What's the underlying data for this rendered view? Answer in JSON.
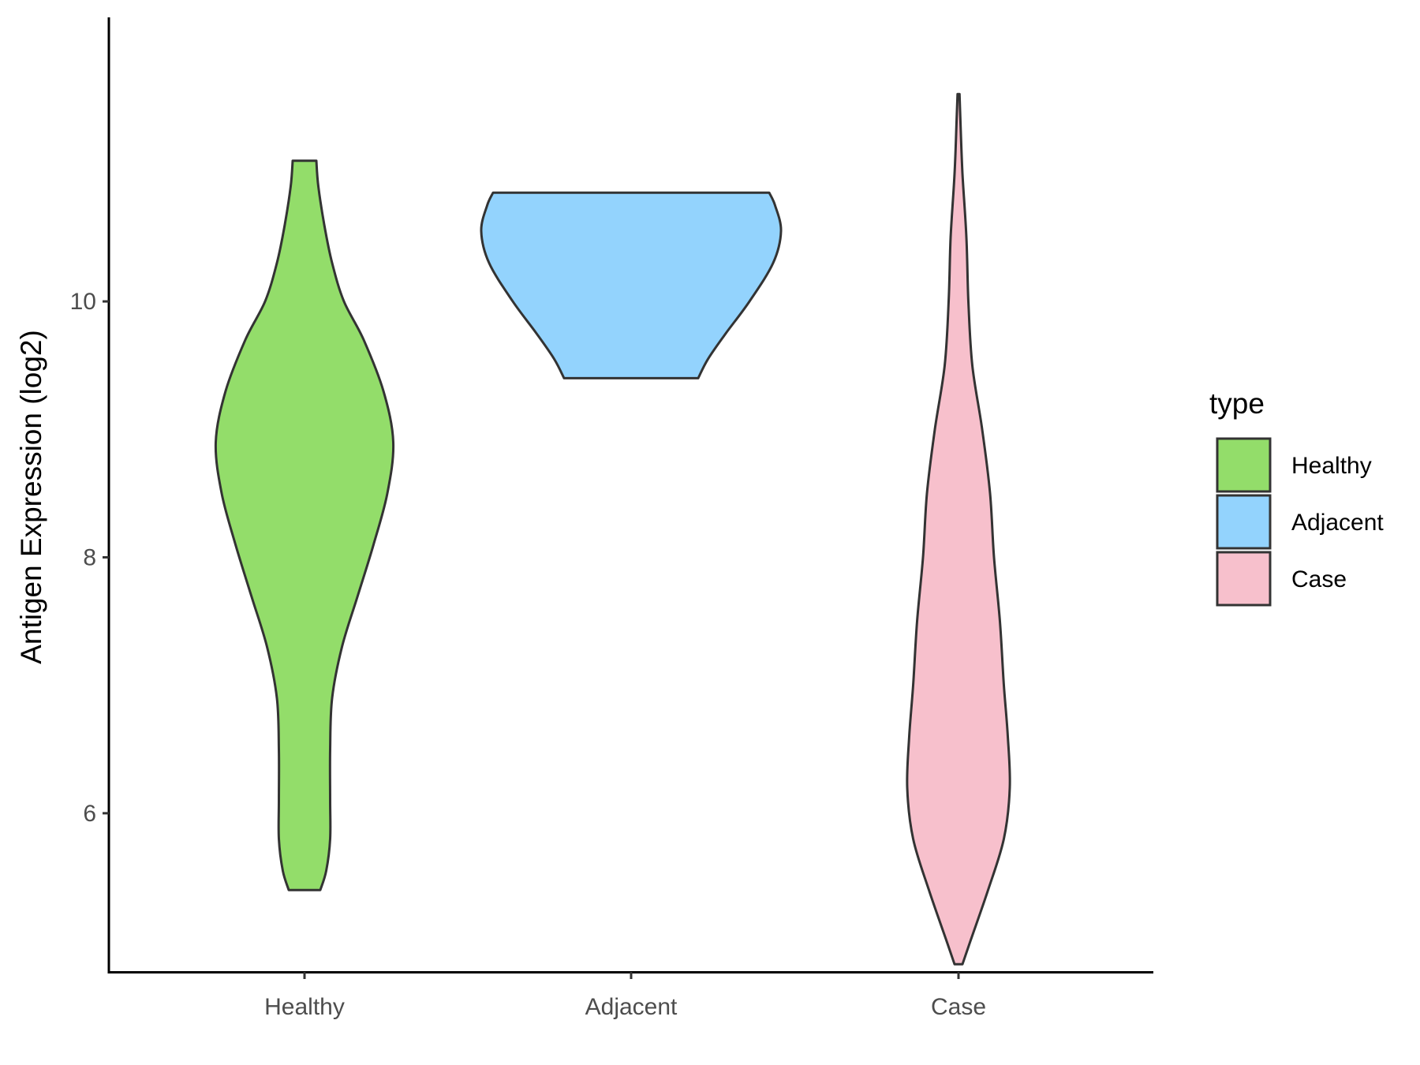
{
  "chart_data": {
    "type": "violin",
    "title": "",
    "xlabel": "",
    "ylabel": "Antigen Expression (log2)",
    "categories": [
      "Healthy",
      "Adjacent",
      "Case"
    ],
    "y_ticks": [
      6,
      8,
      10
    ],
    "ylim": [
      4.76,
      12.22
    ],
    "grid": false,
    "legend": {
      "title": "type",
      "position": "right",
      "entries": [
        {
          "label": "Healthy",
          "color": "#93DD6A"
        },
        {
          "label": "Adjacent",
          "color": "#93D3FD"
        },
        {
          "label": "Case",
          "color": "#F7C0CC"
        }
      ]
    },
    "series": [
      {
        "category": "Healthy",
        "color": "#93DD6A",
        "min": 5.4,
        "max": 11.1,
        "density_profile": [
          [
            5.4,
            0.08
          ],
          [
            5.55,
            0.11
          ],
          [
            5.8,
            0.13
          ],
          [
            6.1,
            0.13
          ],
          [
            6.5,
            0.13
          ],
          [
            6.9,
            0.14
          ],
          [
            7.3,
            0.19
          ],
          [
            7.7,
            0.27
          ],
          [
            8.1,
            0.35
          ],
          [
            8.5,
            0.42
          ],
          [
            8.9,
            0.45
          ],
          [
            9.3,
            0.4
          ],
          [
            9.7,
            0.3
          ],
          [
            10.0,
            0.2
          ],
          [
            10.3,
            0.14
          ],
          [
            10.6,
            0.1
          ],
          [
            10.9,
            0.07
          ],
          [
            11.1,
            0.06
          ]
        ]
      },
      {
        "category": "Adjacent",
        "color": "#93D3FD",
        "min": 9.4,
        "max": 10.85,
        "density_profile": [
          [
            9.4,
            0.34
          ],
          [
            9.55,
            0.39
          ],
          [
            9.75,
            0.48
          ],
          [
            10.0,
            0.6
          ],
          [
            10.3,
            0.72
          ],
          [
            10.55,
            0.76
          ],
          [
            10.75,
            0.73
          ],
          [
            10.85,
            0.7
          ]
        ]
      },
      {
        "category": "Case",
        "color": "#F7C0CC",
        "min": 4.82,
        "max": 11.62,
        "density_profile": [
          [
            4.82,
            0.02
          ],
          [
            5.0,
            0.06
          ],
          [
            5.4,
            0.15
          ],
          [
            5.8,
            0.23
          ],
          [
            6.2,
            0.26
          ],
          [
            6.6,
            0.25
          ],
          [
            7.0,
            0.23
          ],
          [
            7.5,
            0.21
          ],
          [
            8.0,
            0.18
          ],
          [
            8.5,
            0.16
          ],
          [
            9.0,
            0.12
          ],
          [
            9.5,
            0.07
          ],
          [
            10.0,
            0.05
          ],
          [
            10.5,
            0.04
          ],
          [
            11.0,
            0.02
          ],
          [
            11.4,
            0.01
          ],
          [
            11.62,
            0.005
          ]
        ]
      }
    ]
  }
}
